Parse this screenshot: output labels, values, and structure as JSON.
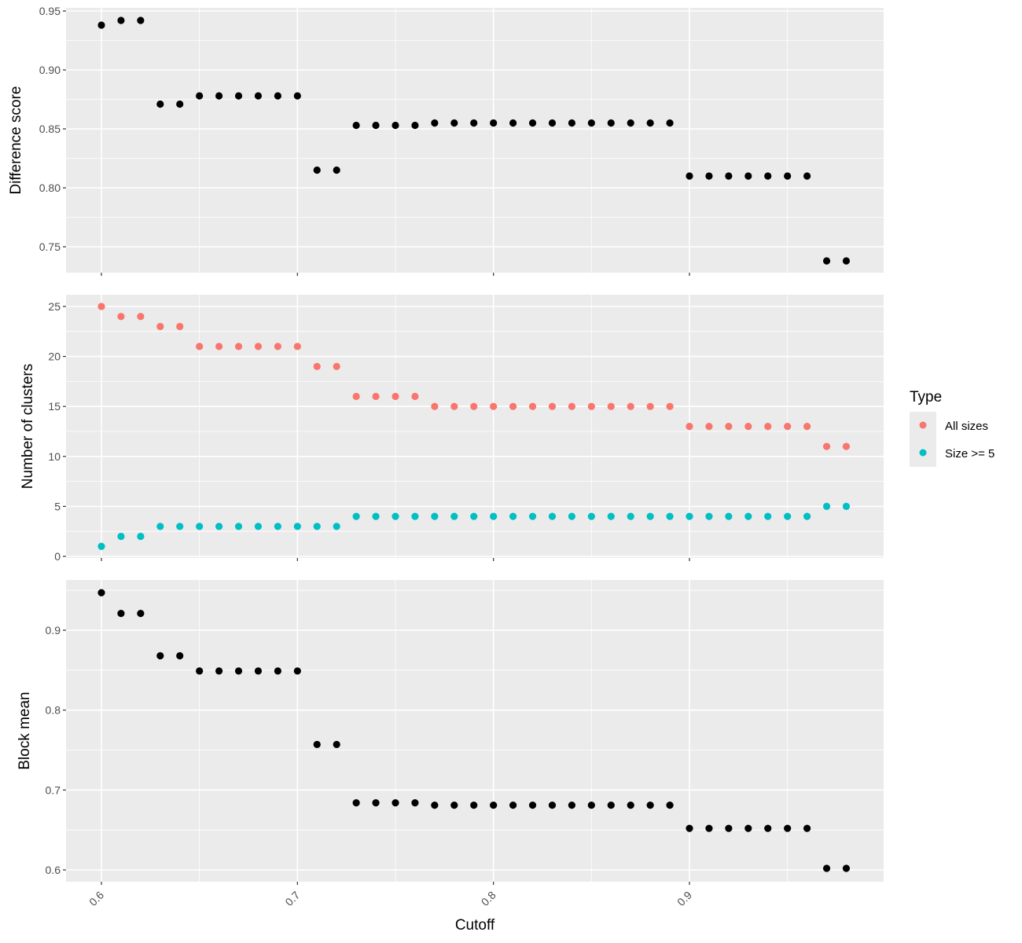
{
  "chart_data": {
    "type": "scatter",
    "layout": "three vertically stacked panels sharing x axis",
    "grid": true,
    "background_color": "#EBEBEB",
    "xlabel": "Cutoff",
    "xlim": [
      0.6,
      0.98
    ],
    "x_ticks": [
      0.6,
      0.7,
      0.8,
      0.9
    ],
    "x_tick_labels": [
      "0.6",
      "0.7",
      "0.8",
      "0.9"
    ],
    "x_tick_rotation_deg": -45,
    "x": [
      0.6,
      0.61,
      0.62,
      0.63,
      0.64,
      0.65,
      0.66,
      0.67,
      0.68,
      0.69,
      0.7,
      0.71,
      0.72,
      0.73,
      0.74,
      0.75,
      0.76,
      0.77,
      0.78,
      0.79,
      0.8,
      0.81,
      0.82,
      0.83,
      0.84,
      0.85,
      0.86,
      0.87,
      0.88,
      0.89,
      0.9,
      0.91,
      0.92,
      0.93,
      0.94,
      0.95,
      0.96,
      0.97,
      0.98
    ],
    "legend": {
      "title": "Type",
      "placement": "right",
      "entries": [
        {
          "label": "All sizes",
          "color": "#F8766D"
        },
        {
          "label": "Size >= 5",
          "color": "#00BFC4"
        }
      ]
    },
    "panels": [
      {
        "ylabel": "Difference score",
        "ylim": [
          0.728,
          0.951
        ],
        "y_ticks": [
          0.75,
          0.8,
          0.85,
          0.9,
          0.95
        ],
        "y_tick_labels": [
          "0.75",
          "0.80",
          "0.85",
          "0.90",
          "0.95"
        ],
        "series": [
          {
            "color": "#000000",
            "values": [
              0.938,
              0.942,
              0.942,
              0.871,
              0.871,
              0.878,
              0.878,
              0.878,
              0.878,
              0.878,
              0.878,
              0.815,
              0.815,
              0.853,
              0.853,
              0.853,
              0.853,
              0.855,
              0.855,
              0.855,
              0.855,
              0.855,
              0.855,
              0.855,
              0.855,
              0.855,
              0.855,
              0.855,
              0.855,
              0.855,
              0.81,
              0.81,
              0.81,
              0.81,
              0.81,
              0.81,
              0.81,
              0.738,
              0.738
            ]
          }
        ]
      },
      {
        "ylabel": "Number of clusters",
        "ylim": [
          -0.1,
          26.0
        ],
        "y_ticks": [
          0,
          5,
          10,
          15,
          20,
          25
        ],
        "y_tick_labels": [
          "0",
          "5",
          "10",
          "15",
          "20",
          "25"
        ],
        "series": [
          {
            "name": "All sizes",
            "color": "#F8766D",
            "values": [
              25,
              24,
              24,
              23,
              23,
              21,
              21,
              21,
              21,
              21,
              21,
              19,
              19,
              16,
              16,
              16,
              16,
              15,
              15,
              15,
              15,
              15,
              15,
              15,
              15,
              15,
              15,
              15,
              15,
              15,
              13,
              13,
              13,
              13,
              13,
              13,
              13,
              11,
              11
            ]
          },
          {
            "name": "Size >= 5",
            "color": "#00BFC4",
            "values": [
              1,
              2,
              2,
              3,
              3,
              3,
              3,
              3,
              3,
              3,
              3,
              3,
              3,
              4,
              4,
              4,
              4,
              4,
              4,
              4,
              4,
              4,
              4,
              4,
              4,
              4,
              4,
              4,
              4,
              4,
              4,
              4,
              4,
              4,
              4,
              4,
              4,
              5,
              5
            ]
          }
        ]
      },
      {
        "ylabel": "Block mean",
        "ylim": [
          0.59,
          0.96
        ],
        "y_ticks": [
          0.6,
          0.7,
          0.8,
          0.9
        ],
        "y_tick_labels": [
          "0.6",
          "0.7",
          "0.8",
          "0.9"
        ],
        "series": [
          {
            "color": "#000000",
            "values": [
              0.947,
              0.921,
              0.921,
              0.868,
              0.868,
              0.849,
              0.849,
              0.849,
              0.849,
              0.849,
              0.849,
              0.757,
              0.757,
              0.684,
              0.684,
              0.684,
              0.684,
              0.681,
              0.681,
              0.681,
              0.681,
              0.681,
              0.681,
              0.681,
              0.681,
              0.681,
              0.681,
              0.681,
              0.681,
              0.681,
              0.652,
              0.652,
              0.652,
              0.652,
              0.652,
              0.652,
              0.652,
              0.602,
              0.602
            ]
          }
        ]
      }
    ]
  }
}
